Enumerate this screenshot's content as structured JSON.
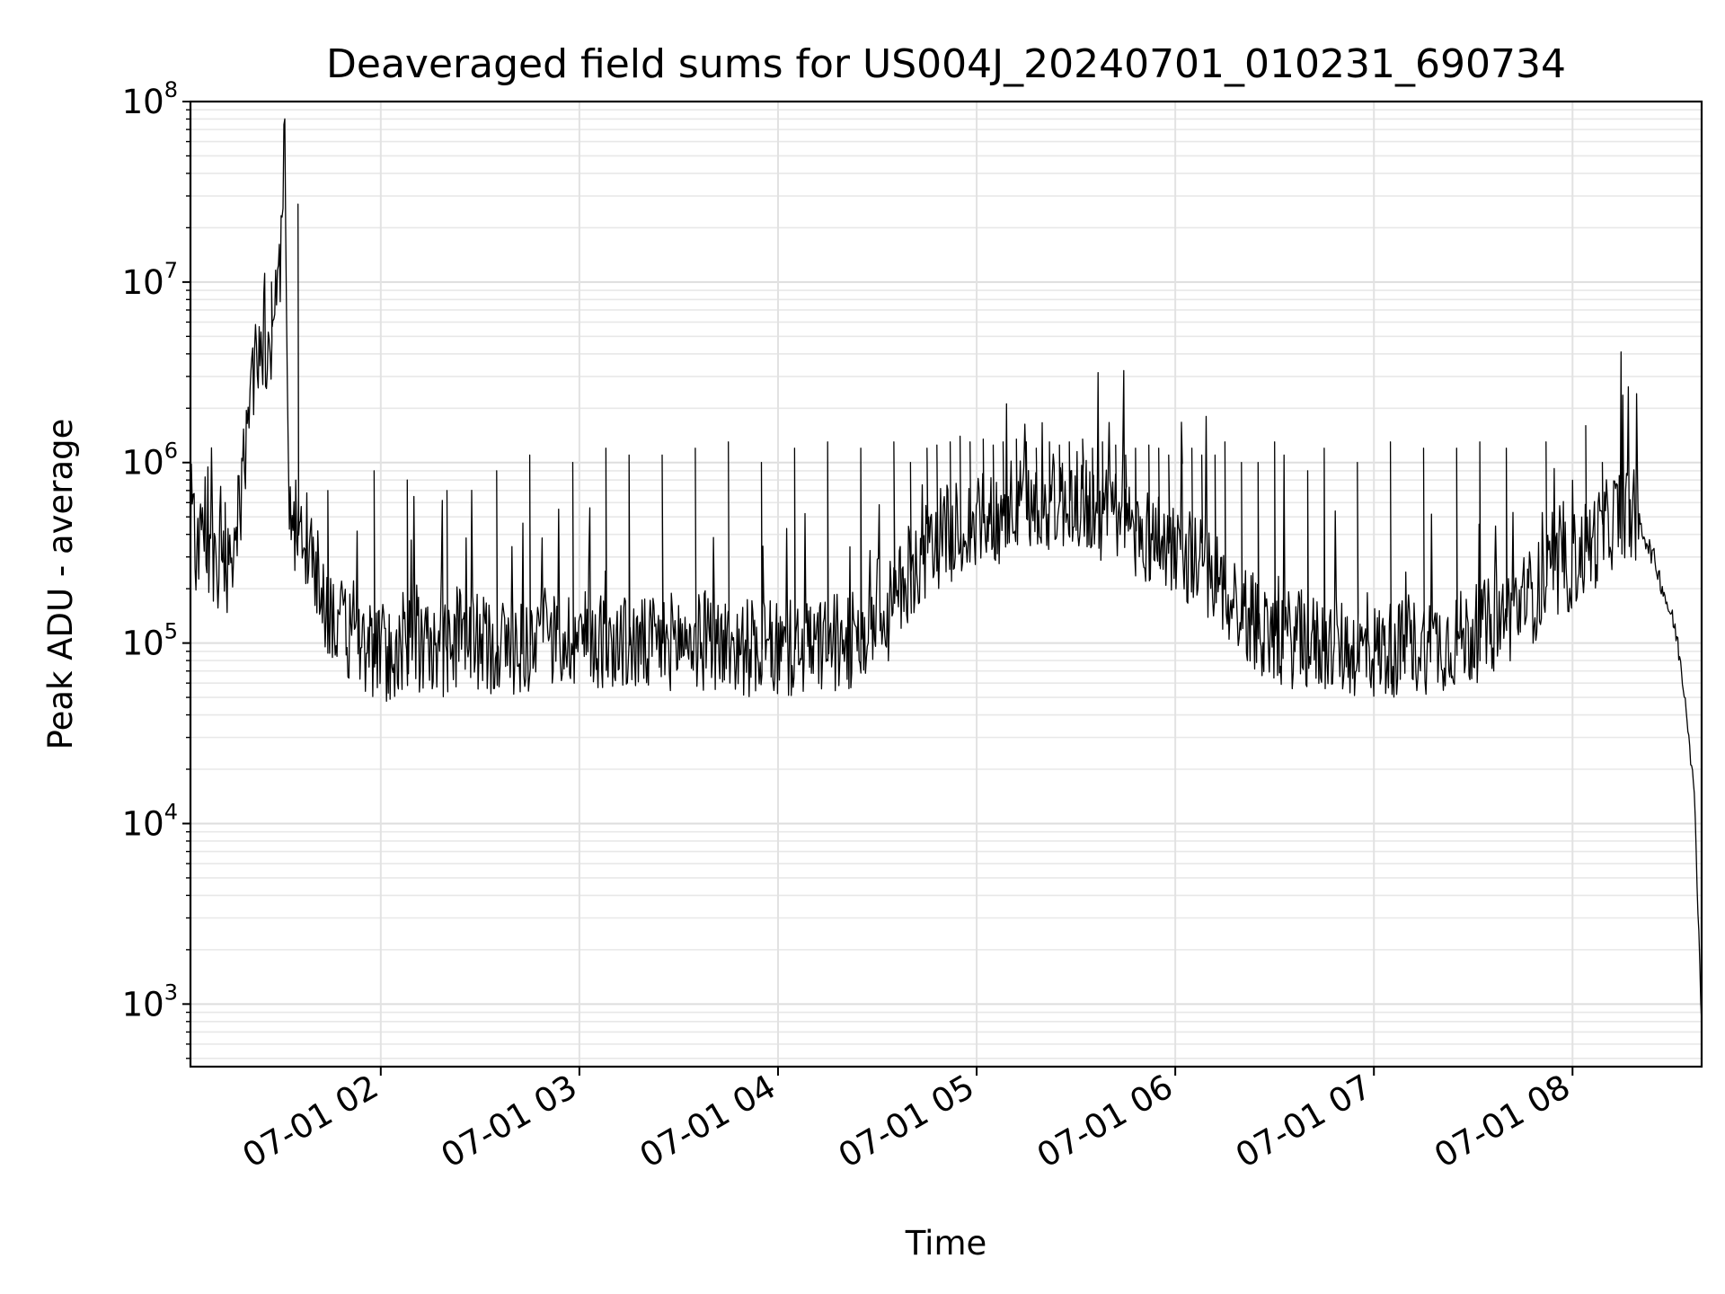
{
  "chart_data": {
    "type": "line",
    "title": "Deaveraged field sums for US004J_20240701_010231_690734",
    "xlabel": "Time",
    "ylabel": "Peak ADU - average",
    "yscale": "log",
    "ylim": [
      450,
      100000000
    ],
    "xlim": [
      "2024-07-01 01:02:31",
      "2024-07-01 08:39:00"
    ],
    "grid": "on (major and minor)",
    "line_color": "#000000",
    "y_ticks": [
      {
        "base": "10",
        "exp": "3"
      },
      {
        "base": "10",
        "exp": "4"
      },
      {
        "base": "10",
        "exp": "5"
      },
      {
        "base": "10",
        "exp": "6"
      },
      {
        "base": "10",
        "exp": "7"
      },
      {
        "base": "10",
        "exp": "8"
      }
    ],
    "x_ticks": [
      "07-01 02",
      "07-01 03",
      "07-01 04",
      "07-01 05",
      "07-01 06",
      "07-01 07",
      "07-01 08"
    ],
    "series": [
      {
        "time": [
          "01:02",
          "01:05",
          "01:08",
          "01:10",
          "01:12",
          "01:14",
          "01:16",
          "01:18",
          "01:20",
          "01:22",
          "01:24",
          "01:26",
          "01:28",
          "01:30",
          "01:31",
          "01:32",
          "01:34",
          "01:36",
          "01:38",
          "01:40",
          "01:42",
          "01:44",
          "01:46",
          "01:48",
          "01:50",
          "01:52",
          "01:55",
          "02:00",
          "02:05",
          "02:10",
          "02:15",
          "02:20",
          "02:25",
          "02:30",
          "02:40",
          "02:50",
          "03:00",
          "03:10",
          "03:20",
          "03:30",
          "03:40",
          "03:50",
          "04:00",
          "04:10",
          "04:20",
          "04:30",
          "04:40",
          "04:50",
          "05:00",
          "05:10",
          "05:20",
          "05:30",
          "05:40",
          "05:50",
          "06:00",
          "06:10",
          "06:20",
          "06:30",
          "06:40",
          "06:50",
          "07:00",
          "07:10",
          "07:20",
          "07:30",
          "07:40",
          "07:50",
          "08:00",
          "08:05",
          "08:10",
          "08:12",
          "08:14",
          "08:16",
          "08:20",
          "08:25",
          "08:28",
          "08:31",
          "08:33",
          "08:35",
          "08:37",
          "08:38",
          "08:39"
        ],
        "values": [
          380000,
          340000,
          360000,
          300000,
          280000,
          250000,
          350000,
          700000,
          1500000,
          3000000,
          5000000,
          4000000,
          8000000,
          15000000,
          60000000,
          900000,
          450000,
          350000,
          300000,
          250000,
          200000,
          160000,
          140000,
          120000,
          110000,
          100000,
          95000,
          90000,
          85000,
          100000,
          90000,
          95000,
          110000,
          100000,
          95000,
          100000,
          110000,
          100000,
          95000,
          105000,
          100000,
          95000,
          90000,
          95000,
          100000,
          110000,
          250000,
          400000,
          450000,
          550000,
          600000,
          620000,
          500000,
          400000,
          350000,
          250000,
          150000,
          110000,
          100000,
          95000,
          90000,
          95000,
          100000,
          110000,
          140000,
          200000,
          280000,
          350000,
          420000,
          480000,
          520000,
          550000,
          470000,
          280000,
          180000,
          120000,
          70000,
          35000,
          12000,
          3000,
          800
        ]
      }
    ],
    "spikes": {
      "time": [
        "01:13",
        "01:27",
        "01:35",
        "01:44",
        "01:58",
        "02:08",
        "02:20",
        "02:35",
        "02:45",
        "02:58",
        "03:08",
        "03:15",
        "03:25",
        "03:35",
        "03:45",
        "03:55",
        "04:05",
        "04:15",
        "04:25",
        "04:35",
        "04:40",
        "04:45",
        "04:48",
        "04:52",
        "04:55",
        "04:58",
        "05:02",
        "05:05",
        "05:08",
        "05:12",
        "05:15",
        "05:18",
        "05:22",
        "05:25",
        "05:28",
        "05:32",
        "05:35",
        "05:38",
        "05:42",
        "05:45",
        "05:48",
        "05:52",
        "05:55",
        "05:58",
        "06:02",
        "06:05",
        "06:08",
        "06:12",
        "06:15",
        "06:20",
        "06:25",
        "06:30",
        "06:40",
        "06:45",
        "06:55",
        "07:05",
        "07:15",
        "07:25",
        "07:32",
        "07:40",
        "07:52",
        "08:04",
        "08:09"
      ],
      "values": [
        600000,
        10000000,
        27000000,
        700000,
        900000,
        800000,
        700000,
        900000,
        1100000,
        1000000,
        1200000,
        1100000,
        1100000,
        1200000,
        1300000,
        1000000,
        1200000,
        1300000,
        1200000,
        1300000,
        1000000,
        1200000,
        1250000,
        1300000,
        1400000,
        1300000,
        1350000,
        1250000,
        1300000,
        1350000,
        1300000,
        1200000,
        1300000,
        1250000,
        1300000,
        1350000,
        1200000,
        1300000,
        1250000,
        1100000,
        1200000,
        1250000,
        1200000,
        1100000,
        1150000,
        1200000,
        1100000,
        1100000,
        1300000,
        1000000,
        1000000,
        1300000,
        900000,
        1200000,
        1000000,
        1300000,
        1200000,
        1200000,
        1300000,
        1200000,
        1300000,
        1600000,
        1000000
      ]
    }
  }
}
